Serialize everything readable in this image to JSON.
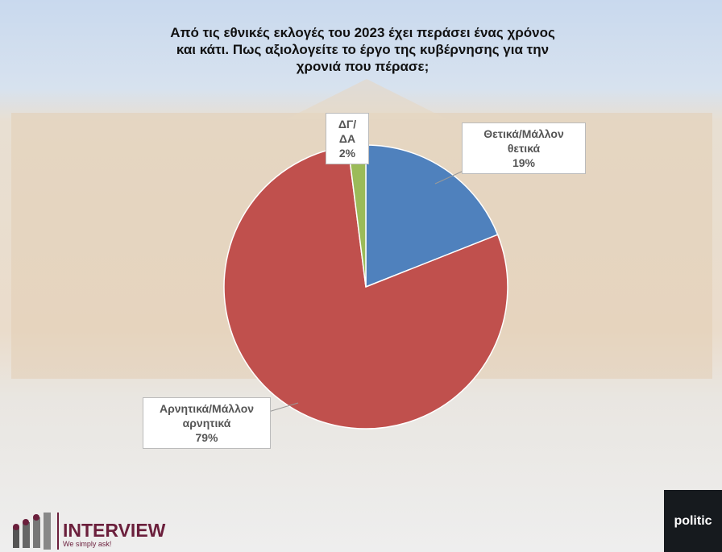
{
  "chart_data": {
    "type": "pie",
    "title": "Από τις εθνικές εκλογές του 2023 έχει περάσει ένας χρόνος και κάτι. Πως αξιολογείτε το έργο της κυβέρνησης για την χρονιά που πέρασε;",
    "slices": [
      {
        "label": "Θετικά/Μάλλον θετικά",
        "value": 19,
        "display": "19%",
        "color": "#4f81bd"
      },
      {
        "label": "Αρνητικά/Μάλλον αρνητικά",
        "value": 79,
        "display": "79%",
        "color": "#c0504d"
      },
      {
        "label": "ΔΓ/ΔΑ",
        "value": 2,
        "display": "2%",
        "color": "#9bbb59"
      }
    ]
  },
  "branding": {
    "logo": "INTERVIEW",
    "tagline": "We simply ask!",
    "partner": "politic"
  }
}
